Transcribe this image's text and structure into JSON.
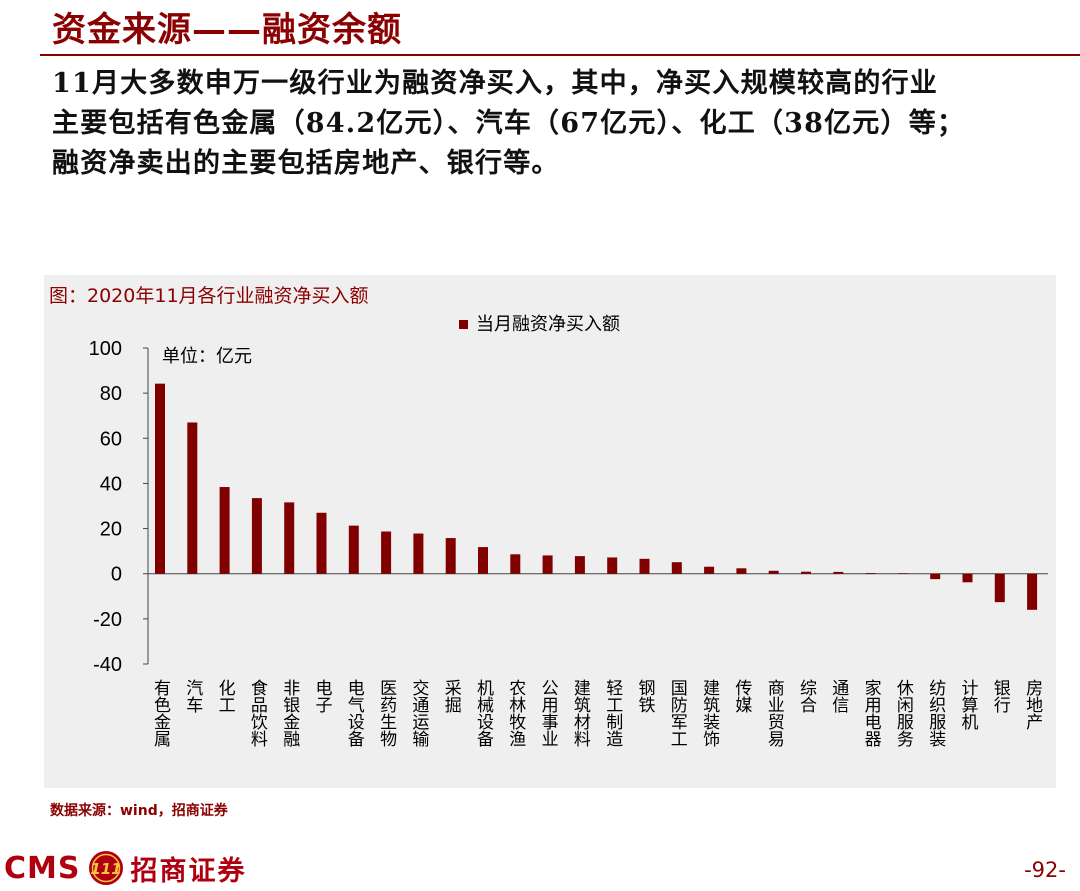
{
  "slide": {
    "title": "资金来源——融资余额",
    "summary_lines": [
      "11月大多数申万一级行业为融资净买入，其中，净买入规模较高的行业",
      "主要包括有色金属（84.2亿元）、汽车（67亿元）、化工（38亿元）等；",
      "融资净卖出的主要包括房地产、银行等。"
    ]
  },
  "chart_data": {
    "type": "bar",
    "title": "图：2020年11月各行业融资净买入额",
    "unit_label": "单位：亿元",
    "legend": {
      "position": "top-center"
    },
    "ylim": [
      -40,
      100
    ],
    "yticks": [
      100,
      80,
      60,
      40,
      20,
      0,
      -20,
      -40
    ],
    "categories": [
      "有色金属",
      "汽车",
      "化工",
      "食品饮料",
      "非银金融",
      "电子",
      "电气设备",
      "医药生物",
      "交通运输",
      "采掘",
      "机械设备",
      "农林牧渔",
      "公用事业",
      "建筑材料",
      "轻工制造",
      "钢铁",
      "国防军工",
      "建筑装饰",
      "传媒",
      "商业贸易",
      "综合",
      "通信",
      "家用电器",
      "休闲服务",
      "纺织服装",
      "计算机",
      "银行",
      "房地产"
    ],
    "series": [
      {
        "name": "当月融资净买入额",
        "color": "#800000",
        "values": [
          84.2,
          67,
          38.4,
          33.5,
          31.6,
          27,
          21.3,
          18.7,
          17.8,
          15.8,
          11.8,
          8.6,
          8.1,
          7.8,
          7.2,
          6.6,
          5.1,
          3.1,
          2.4,
          1.3,
          0.9,
          0.8,
          0.3,
          0.2,
          -2.4,
          -3.8,
          -12.6,
          -16
        ]
      }
    ],
    "grid": false,
    "bar_color": "#800000",
    "background": "#efefef"
  },
  "footer": {
    "source": "数据来源：wind，招商证券",
    "brand_en": "CMS",
    "brand_cn": "招商证券",
    "logo_text": "111",
    "page_number": "-92-"
  },
  "colors": {
    "accent": "#8b0000",
    "brand": "#b00010"
  }
}
